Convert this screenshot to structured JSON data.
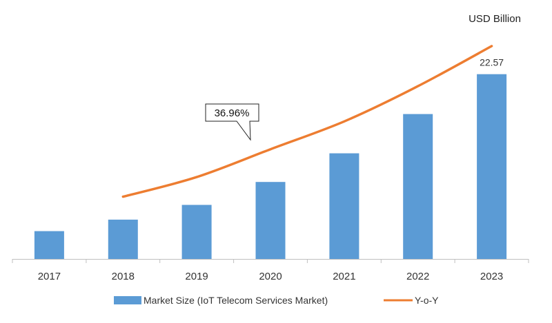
{
  "chart_data": {
    "type": "bar",
    "title": "",
    "unit_label": "USD Billion",
    "xlabel": "",
    "ylabel": "",
    "grid": false,
    "legend_position": "bottom",
    "categories": [
      "2017",
      "2018",
      "2019",
      "2020",
      "2021",
      "2022",
      "2023"
    ],
    "series": [
      {
        "name": "Market Size (IoT Telecom Services Market)",
        "kind": "bar",
        "color": "#5b9bd5",
        "values": [
          3.4,
          4.8,
          6.6,
          9.4,
          12.9,
          17.7,
          22.57
        ]
      },
      {
        "name": "Y-o-Y",
        "kind": "line",
        "color": "#ed7d31",
        "x": [
          "2018",
          "2019",
          "2020",
          "2021",
          "2022",
          "2023"
        ],
        "values": [
          7.6,
          10.0,
          13.4,
          16.8,
          21.1,
          26.0
        ]
      }
    ],
    "data_labels": [
      {
        "category": "2023",
        "series": "Market Size (IoT Telecom Services Market)",
        "text": "22.57"
      }
    ],
    "annotations": [
      {
        "text": "36.96%",
        "series": "Y-o-Y",
        "anchor_category": "2019.8"
      }
    ],
    "ylim": [
      0,
      27
    ]
  }
}
